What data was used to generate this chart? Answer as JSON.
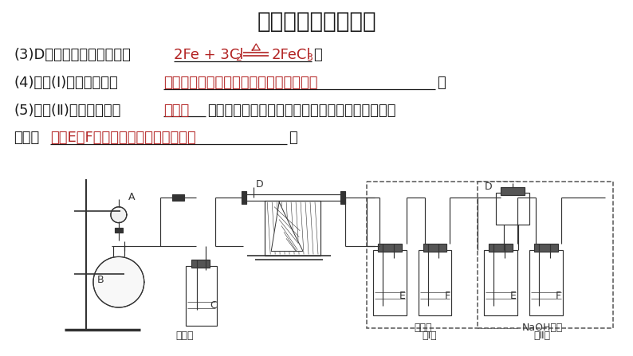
{
  "title": "氯气的综合实验探究",
  "title_fontsize": 20,
  "bg_color": "#ffffff",
  "text_color_black": "#1a1a1a",
  "text_color_red": "#b22222",
  "line3_black1": "(3)D中反应的化学方程式为",
  "line3_red": "2Fe + 3Cl⊂2FeCl₃",
  "line3_black2": "。",
  "line4_black1": "(4)装置(Ⅰ)的主要缺点是",
  "line4_red": "易被产品堵塞，尾气排入空气中污染环境",
  "line4_black2": "。",
  "line5_black1": "(5)装置(Ⅱ)的主要缺点是",
  "line5_red": "易潮解",
  "line5_black2": "。如果选用此装置来完成实验，则必须采取的改进",
  "line6_black1": "措施是",
  "line6_red": "在瓶E和F之间连接装有干燥剂的装置",
  "line6_black2": "。"
}
